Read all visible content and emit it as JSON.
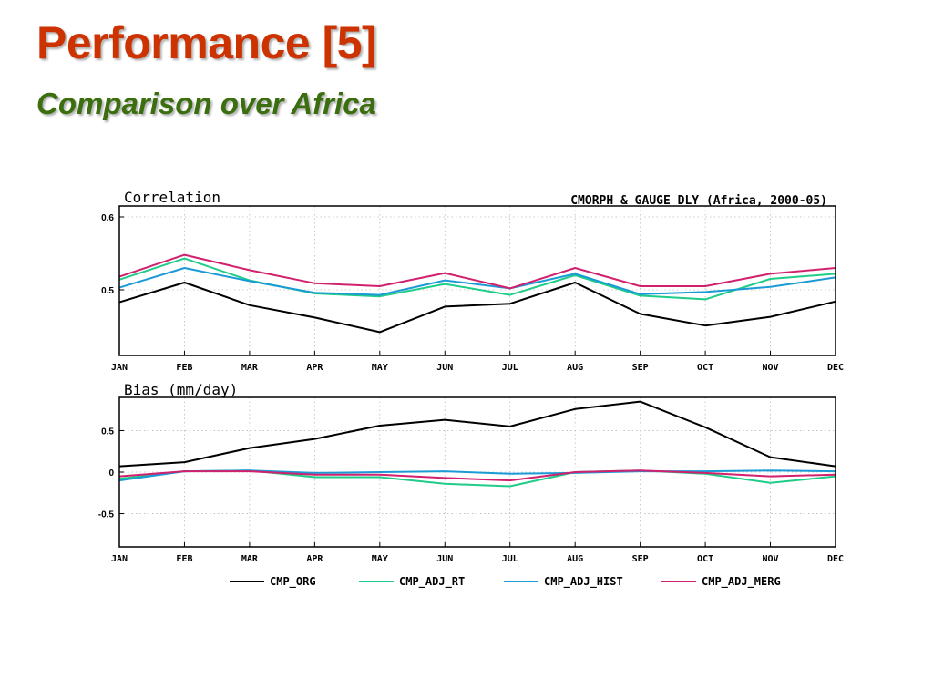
{
  "slide": {
    "title": "Performance [5]",
    "subtitle": "Comparison over Africa"
  },
  "figure_header": "CMORPH & GAUGE DLY (Africa, 2000-05)",
  "chart_data": [
    {
      "type": "line",
      "title": "Correlation",
      "categories": [
        "JAN",
        "FEB",
        "MAR",
        "APR",
        "MAY",
        "JUN",
        "JUL",
        "AUG",
        "SEP",
        "OCT",
        "NOV",
        "DEC"
      ],
      "ylim": [
        0.41,
        0.615
      ],
      "yticks": [
        0.5,
        0.6
      ],
      "ytick_labels": [
        "0.5",
        "0.6"
      ],
      "grid": true,
      "series": [
        {
          "name": "CMP_ORG",
          "color": "#000000",
          "values": [
            0.483,
            0.51,
            0.479,
            0.462,
            0.442,
            0.477,
            0.481,
            0.51,
            0.467,
            0.451,
            0.463,
            0.484
          ]
        },
        {
          "name": "CMP_ADJ_RT",
          "color": "#1fcc88",
          "values": [
            0.514,
            0.543,
            0.513,
            0.495,
            0.491,
            0.508,
            0.493,
            0.52,
            0.492,
            0.487,
            0.515,
            0.522
          ]
        },
        {
          "name": "CMP_ADJ_HIST",
          "color": "#1b9ad6",
          "values": [
            0.503,
            0.53,
            0.512,
            0.496,
            0.493,
            0.513,
            0.502,
            0.522,
            0.494,
            0.497,
            0.504,
            0.517
          ]
        },
        {
          "name": "CMP_ADJ_MERG",
          "color": "#d0206e",
          "values": [
            0.518,
            0.548,
            0.527,
            0.509,
            0.505,
            0.523,
            0.502,
            0.53,
            0.505,
            0.505,
            0.522,
            0.53
          ]
        }
      ]
    },
    {
      "type": "line",
      "title": "Bias (mm/day)",
      "categories": [
        "JAN",
        "FEB",
        "MAR",
        "APR",
        "MAY",
        "JUN",
        "JUL",
        "AUG",
        "SEP",
        "OCT",
        "NOV",
        "DEC"
      ],
      "ylim": [
        -0.9,
        0.9
      ],
      "yticks": [
        -0.5,
        0,
        0.5
      ],
      "ytick_labels": [
        "-0.5",
        "0",
        "0.5"
      ],
      "grid": true,
      "series": [
        {
          "name": "CMP_ORG",
          "color": "#000000",
          "values": [
            0.07,
            0.12,
            0.29,
            0.4,
            0.56,
            0.63,
            0.55,
            0.76,
            0.85,
            0.54,
            0.18,
            0.07
          ]
        },
        {
          "name": "CMP_ADJ_RT",
          "color": "#1fcc88",
          "values": [
            -0.08,
            0.01,
            0.02,
            -0.06,
            -0.06,
            -0.14,
            -0.17,
            0.0,
            0.02,
            -0.02,
            -0.13,
            -0.05
          ]
        },
        {
          "name": "CMP_ADJ_HIST",
          "color": "#1b9ad6",
          "values": [
            -0.1,
            0.01,
            0.02,
            -0.01,
            0.0,
            0.01,
            -0.02,
            -0.01,
            0.01,
            0.01,
            0.02,
            0.01
          ]
        },
        {
          "name": "CMP_ADJ_MERG",
          "color": "#d0206e",
          "values": [
            -0.05,
            0.01,
            0.01,
            -0.03,
            -0.03,
            -0.07,
            -0.1,
            0.0,
            0.02,
            -0.01,
            -0.05,
            -0.03
          ]
        }
      ]
    }
  ],
  "legend": {
    "placement": "bottom",
    "items": [
      "CMP_ORG",
      "CMP_ADJ_RT",
      "CMP_ADJ_HIST",
      "CMP_ADJ_MERG"
    ]
  }
}
